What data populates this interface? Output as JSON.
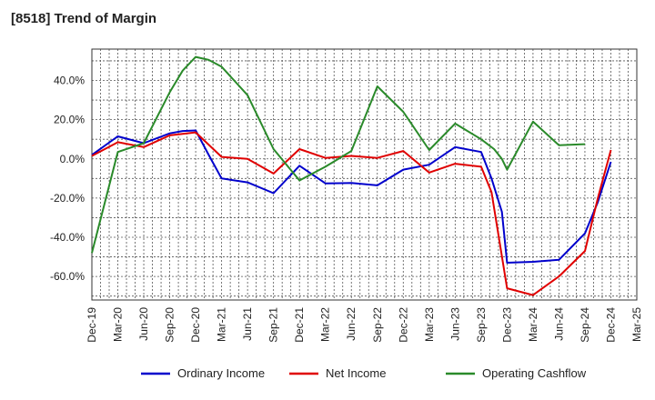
{
  "chart_data": {
    "type": "line",
    "title": "[8518]  Trend of Margin",
    "xlabel": "",
    "ylabel": "",
    "ylim": [
      -72,
      56
    ],
    "yticks": [
      40,
      20,
      0,
      -20,
      -40,
      -60
    ],
    "ytick_labels": [
      "40.0%",
      "20.0%",
      "0.0%",
      "-20.0%",
      "-40.0%",
      "-60.0%"
    ],
    "categories": [
      "Dec-19",
      "Mar-20",
      "Jun-20",
      "Sep-20",
      "Dec-20",
      "Mar-21",
      "Jun-21",
      "Sep-21",
      "Dec-21",
      "Mar-22",
      "Jun-22",
      "Sep-22",
      "Dec-22",
      "Mar-23",
      "Jun-23",
      "Sep-23",
      "Dec-23",
      "Mar-24",
      "Jun-24",
      "Sep-24",
      "Dec-24",
      "Mar-25"
    ],
    "grid": true,
    "legend_position": "bottom",
    "series": [
      {
        "name": "Ordinary Income",
        "color": "#0000cc",
        "points": [
          [
            0,
            2
          ],
          [
            1,
            11.5
          ],
          [
            2,
            8
          ],
          [
            3,
            13
          ],
          [
            3.5,
            14.2
          ],
          [
            4,
            14.5
          ],
          [
            4.5,
            2
          ],
          [
            5,
            -10
          ],
          [
            6,
            -12
          ],
          [
            7,
            -17.5
          ],
          [
            8,
            -3.5
          ],
          [
            9,
            -12.5
          ],
          [
            10,
            -12.3
          ],
          [
            11,
            -13.5
          ],
          [
            12,
            -5.5
          ],
          [
            13,
            -3
          ],
          [
            14,
            6
          ],
          [
            15,
            3.5
          ],
          [
            15.4,
            -10
          ],
          [
            15.8,
            -27
          ],
          [
            16,
            -53
          ],
          [
            17,
            -52.5
          ],
          [
            18,
            -51.5
          ],
          [
            19,
            -38
          ],
          [
            19.5,
            -22
          ],
          [
            20,
            -1.5
          ]
        ]
      },
      {
        "name": "Net Income",
        "color": "#e00000",
        "points": [
          [
            0,
            1.5
          ],
          [
            1,
            8.5
          ],
          [
            2,
            6
          ],
          [
            3,
            12
          ],
          [
            4,
            13.5
          ],
          [
            5,
            1
          ],
          [
            6,
            0
          ],
          [
            7,
            -7.5
          ],
          [
            8,
            5
          ],
          [
            9,
            0.5
          ],
          [
            10,
            1.5
          ],
          [
            11,
            0.5
          ],
          [
            12,
            4
          ],
          [
            13,
            -7
          ],
          [
            14,
            -2.5
          ],
          [
            15,
            -4
          ],
          [
            15.4,
            -17
          ],
          [
            16,
            -66
          ],
          [
            17,
            -69.5
          ],
          [
            18,
            -60
          ],
          [
            19,
            -47
          ],
          [
            19.5,
            -20
          ],
          [
            20,
            4.5
          ]
        ]
      },
      {
        "name": "Operating Cashflow",
        "color": "#2a8a2a",
        "points": [
          [
            0,
            -48
          ],
          [
            1,
            3.5
          ],
          [
            2,
            8
          ],
          [
            3,
            34
          ],
          [
            3.5,
            45
          ],
          [
            4,
            52
          ],
          [
            4.5,
            50.5
          ],
          [
            5,
            47
          ],
          [
            6,
            32.5
          ],
          [
            7,
            5
          ],
          [
            8,
            -11
          ],
          [
            9,
            -4
          ],
          [
            10,
            4
          ],
          [
            11,
            37
          ],
          [
            12,
            24
          ],
          [
            13,
            4.5
          ],
          [
            14,
            18
          ],
          [
            15,
            10
          ],
          [
            15.5,
            5
          ],
          [
            15.8,
            0
          ],
          [
            16,
            -5.5
          ],
          [
            17,
            19
          ],
          [
            18,
            7
          ],
          [
            19,
            7.5
          ]
        ]
      }
    ]
  }
}
